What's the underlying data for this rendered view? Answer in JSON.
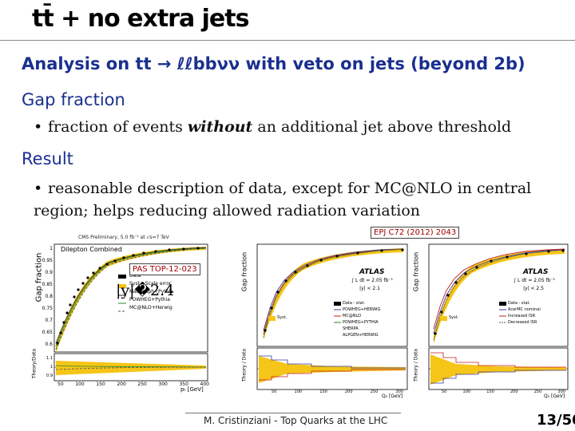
{
  "slide": {
    "title": "tt̄ + no extra jets",
    "heading_analysis": "Analysis on tt → ℓℓbbνν with veto on jets (beyond 2b)",
    "heading_gap": "Gap fraction",
    "bullet_gap_pre": "fraction of events ",
    "bullet_gap_em": "without",
    "bullet_gap_post": " an additional jet above threshold",
    "heading_result": "Result",
    "bullet_result": "reasonable description of data, except for MC@NLO in central region; helps reducing allowed radiation variation",
    "ref_epj": "EPJ C72 (2012) 2043",
    "ref_pas": "PAS TOP-12-023",
    "rapidity_label": "|y|�2.4",
    "footer": "M. Cristinziani - Top Quarks at the LHC",
    "page": "13/50"
  },
  "colors": {
    "heading": "#1a2f8f",
    "ref_box_text": "#a00000",
    "band": "#f5c518"
  },
  "cms_plot": {
    "header": "CMS Preliminary, 5.0 fb⁻¹ at √s=7 TeV",
    "subtitle": "Dilepton Combined",
    "ylabel": "Gap fraction",
    "ratio_ylabel": "Theory/Data",
    "xlabel": "pₜ [GeV]",
    "yticks": [
      "1",
      "0.95",
      "0.9",
      "0.85",
      "0.8",
      "0.75",
      "0.7",
      "0.65",
      "0.6"
    ],
    "xticks": [
      "50",
      "100",
      "150",
      "200",
      "250",
      "300",
      "350",
      "400"
    ],
    "ratio_yticks": [
      "1.1",
      "1",
      "0.9"
    ],
    "legend": [
      "Data",
      "Syst.+Scale error",
      "MadGraph+Pythia",
      "POWHEG+Pythia",
      "MC@NLO+Herwig"
    ]
  },
  "atlas_plot_1": {
    "label": "ATLAS",
    "lumi": "∫ L dt = 2.05 fb⁻¹",
    "region": "|y| < 2.1",
    "ylabel": "Gap fraction",
    "ratio_ylabel": "Theory / Data",
    "xlabel": "Q₀ [GeV]",
    "legend": [
      "Data - stat.",
      "POWHEG+HERWIG",
      "MC@NLO",
      "POWHEG+PYTHIA",
      "SHERPA",
      "ALPGEN+HERWIG",
      "Syst."
    ],
    "xticks": [
      "50",
      "100",
      "150",
      "200",
      "250",
      "300"
    ]
  },
  "atlas_plot_2": {
    "label": "ATLAS",
    "lumi": "∫ L dt = 2.05 fb⁻¹",
    "region": "|y| < 2.5",
    "ylabel": "Gap fraction",
    "ratio_ylabel": "Theory / Data",
    "xlabel": "Q₀ [GeV]",
    "legend": [
      "Data - stat.",
      "AcerMC nominal",
      "Increased ISR",
      "Decreased ISR",
      "Syst."
    ],
    "xticks": [
      "50",
      "100",
      "150",
      "200",
      "250",
      "300"
    ]
  }
}
